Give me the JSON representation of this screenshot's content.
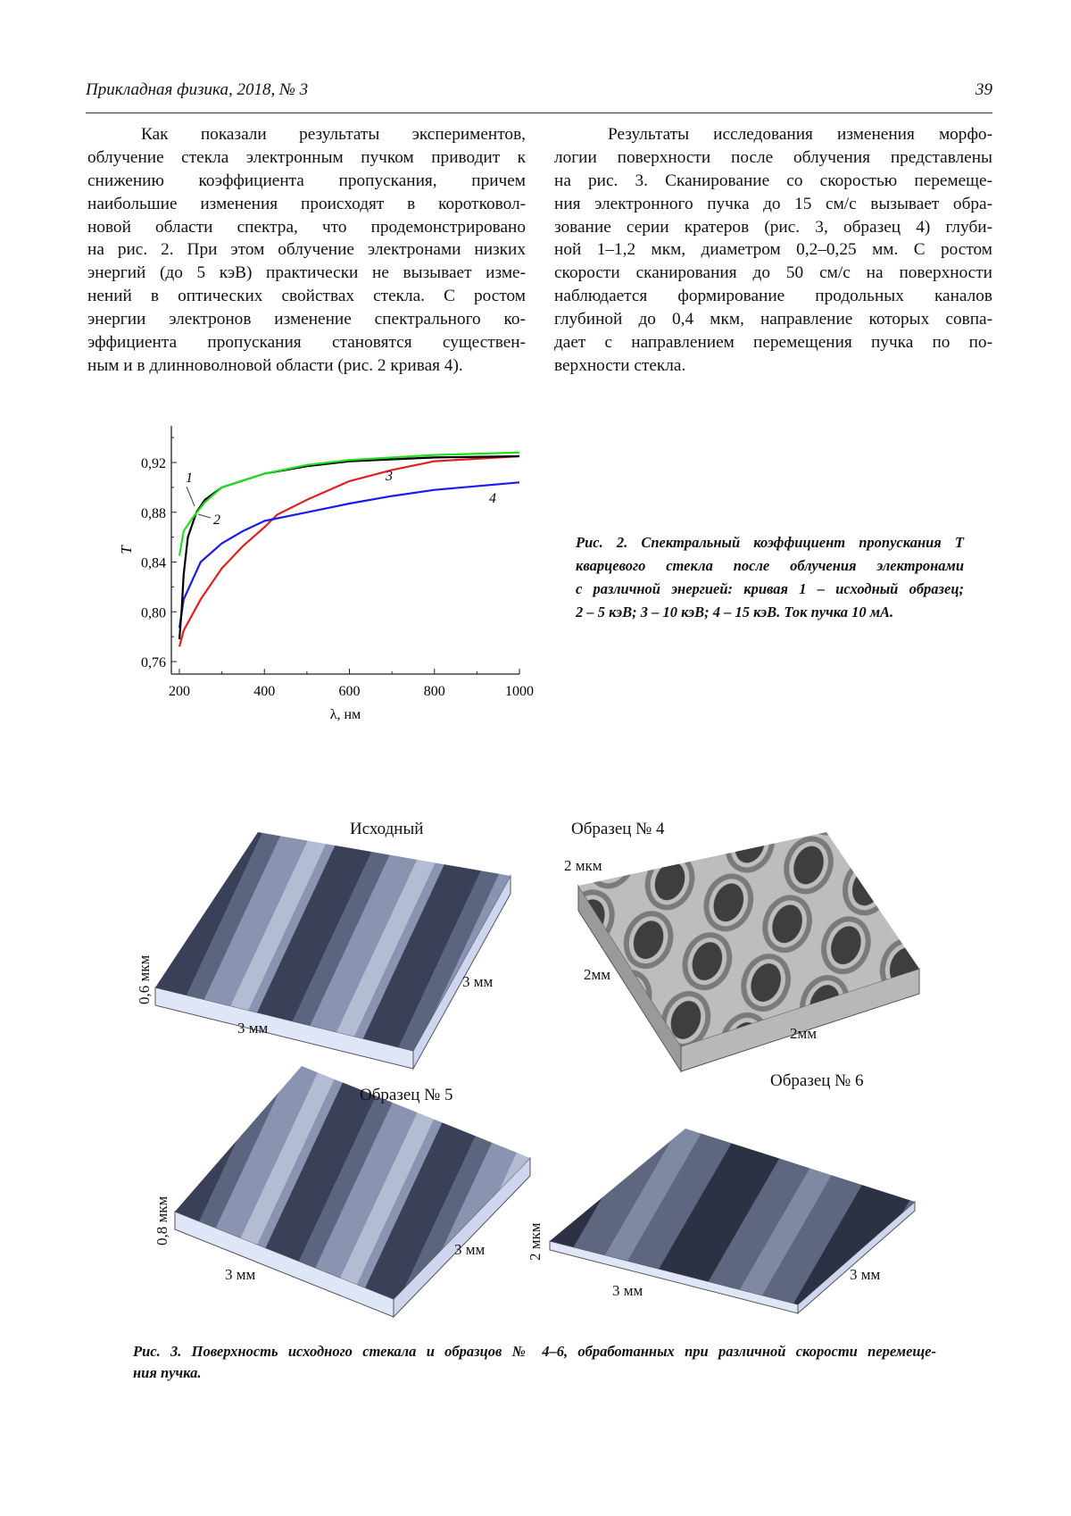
{
  "header": {
    "journal": "Прикладная физика, 2018, № 3",
    "page_number": "39"
  },
  "left_column": [
    "Как показали результаты экспериментов,",
    "облучение стекла электронным пучком приводит к",
    "снижению коэффициента пропускания, причем",
    "наибольшие изменения происходят в коротковол-",
    "новой области спектра, что продемонстрировано",
    "на рис. 2. При этом облучение электронами низких",
    "энергий (до 5 кэВ) практически не вызывает изме-",
    "нений в оптических свойствах стекла. С ростом",
    "энергии электронов изменение спектрального ко-",
    "эффициента пропускания становятся существен-",
    "ным и в длинноволновой области (рис. 2 кривая 4)."
  ],
  "right_column": [
    "Результаты исследования изменения морфо-",
    "логии поверхности после облучения представлены",
    "на рис. 3. Сканирование со скоростью перемеще-",
    "ния электронного пучка до 15 см/с вызывает обра-",
    "зование серии кратеров (рис. 3, образец 4) глуби-",
    "ной 1–1,2 мкм, диаметром 0,2–0,25 мм. С ростом",
    "скорости сканирования до 50 см/с на поверхности",
    "наблюдается формирование продольных каналов",
    "глубиной до 0,4 мкм, направление которых совпа-",
    "дает с направлением перемещения пучка по по-",
    "верхности стекла."
  ],
  "fig2_caption": [
    "Рис. 2. Спектральный коэффициент пропускания T",
    "кварцевого стекла после облучения электронами",
    "с различной энергией: кривая 1 – исходный образец;",
    "2 – 5 кэВ; 3 – 10 кэВ; 4 – 15 кэВ. Ток пучка 10 мА."
  ],
  "chart_data": {
    "type": "line",
    "xlabel": "λ, нм",
    "ylabel": "T",
    "xlim": [
      200,
      1000
    ],
    "ylim": [
      0.75,
      0.95
    ],
    "xticks": [
      200,
      400,
      600,
      800,
      1000
    ],
    "xtick_labels": [
      "200",
      "400",
      "600",
      "800",
      "1000"
    ],
    "yticks": [
      0.76,
      0.8,
      0.84,
      0.88,
      0.92
    ],
    "ytick_labels": [
      "0,76",
      "0,80",
      "0,84",
      "0,88",
      "0,92"
    ],
    "grid": false,
    "series": [
      {
        "label": "1",
        "color": "#000000",
        "x": [
          200,
          205,
          210,
          220,
          240,
          260,
          300,
          400,
          500,
          600,
          800,
          1000
        ],
        "y": [
          0.778,
          0.8,
          0.83,
          0.86,
          0.88,
          0.89,
          0.9,
          0.911,
          0.917,
          0.921,
          0.924,
          0.925
        ]
      },
      {
        "label": "2",
        "color": "#22dd22",
        "x": [
          200,
          210,
          230,
          260,
          300,
          400,
          500,
          600,
          800,
          1000
        ],
        "y": [
          0.845,
          0.865,
          0.875,
          0.888,
          0.9,
          0.911,
          0.918,
          0.922,
          0.926,
          0.928
        ]
      },
      {
        "label": "3",
        "color": "#e02020",
        "x": [
          200,
          210,
          250,
          300,
          350,
          400,
          430,
          500,
          600,
          700,
          800,
          1000
        ],
        "y": [
          0.772,
          0.785,
          0.81,
          0.835,
          0.853,
          0.868,
          0.878,
          0.89,
          0.905,
          0.914,
          0.921,
          0.925
        ]
      },
      {
        "label": "4",
        "color": "#1a1aee",
        "x": [
          200,
          210,
          250,
          300,
          350,
          400,
          500,
          600,
          700,
          800,
          1000
        ],
        "y": [
          0.787,
          0.81,
          0.84,
          0.855,
          0.865,
          0.873,
          0.88,
          0.887,
          0.893,
          0.898,
          0.904
        ]
      }
    ]
  },
  "fig3": {
    "panels": [
      {
        "title": "Исходный",
        "z_label": "0,6 мкм",
        "x_label": "3 мм",
        "y_label": "3 мм"
      },
      {
        "title": "Образец № 4",
        "z_label": "2 мкм",
        "x_label": "2мм",
        "y_label": "2мм"
      },
      {
        "title": "Образец № 5",
        "z_label": "0,8 мкм",
        "x_label": "3 мм",
        "y_label": "3 мм"
      },
      {
        "title": "Образец № 6",
        "z_label": "2 мкм",
        "x_label": "3 мм",
        "y_label": "3 мм"
      }
    ],
    "caption": [
      "Рис. 3. Поверхность исходного стекала и образцов № 4–6, обработанных при различной скорости перемеще-",
      "ния пучка."
    ]
  }
}
